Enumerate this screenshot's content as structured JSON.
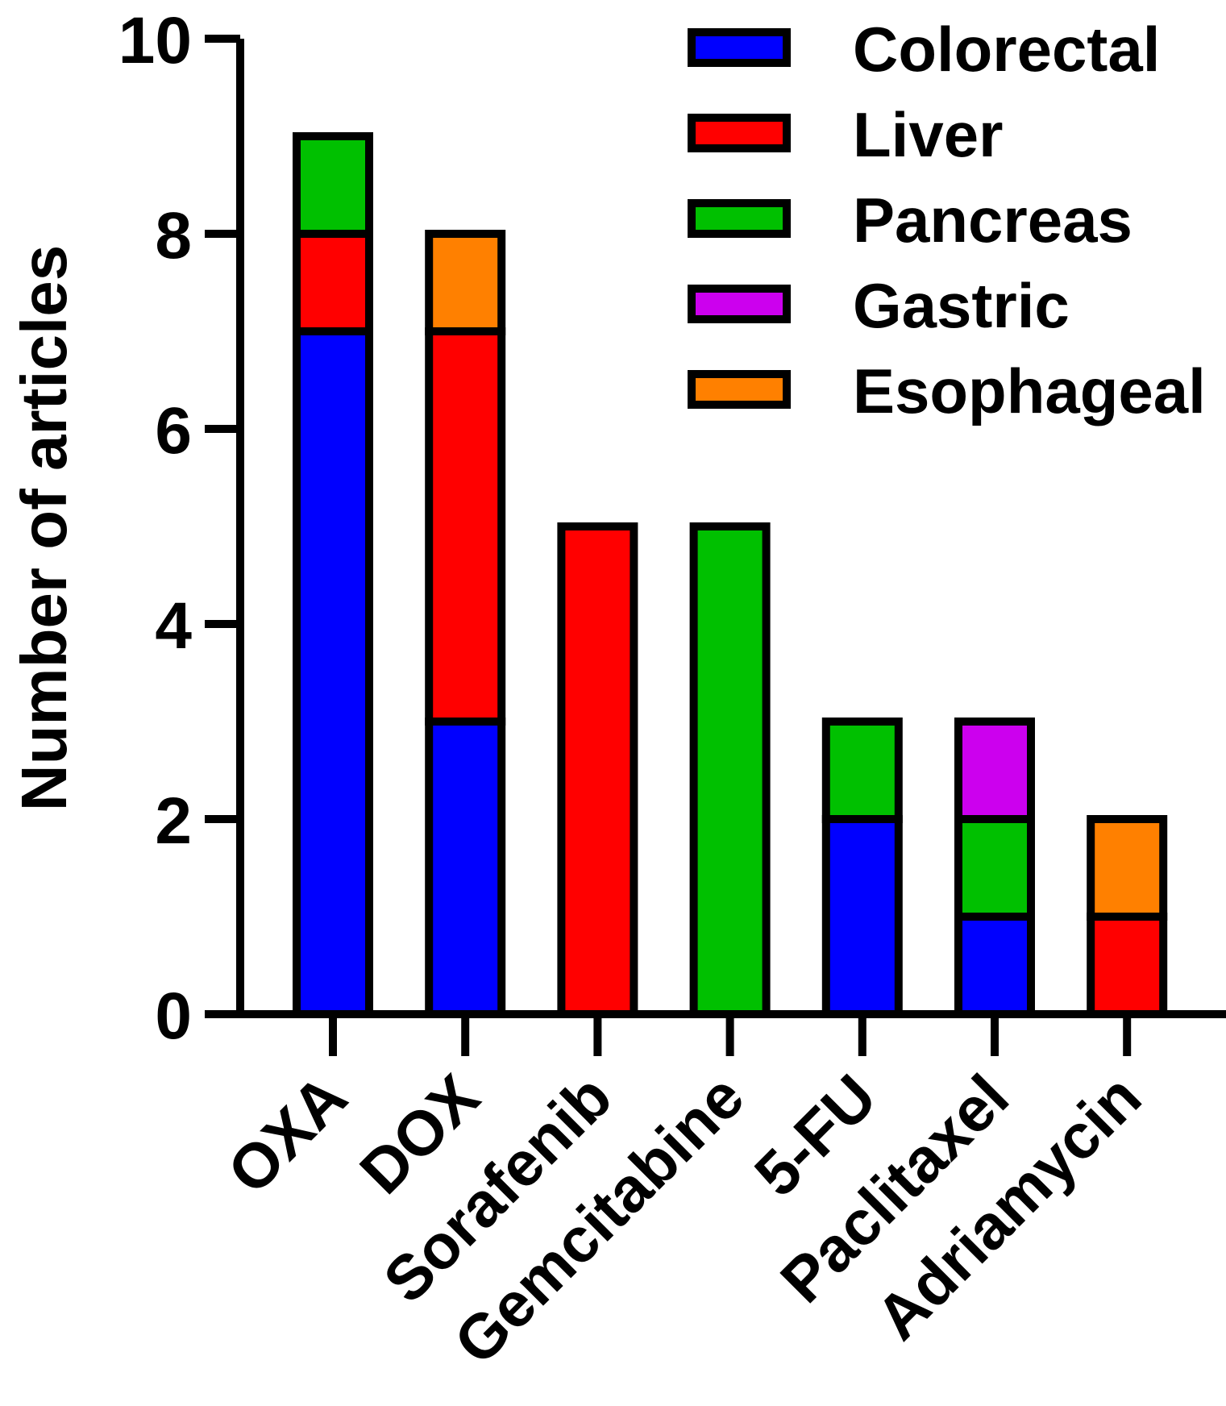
{
  "chart_data": {
    "type": "bar",
    "stacked": true,
    "title": "",
    "xlabel": "",
    "ylabel": "Number of articles",
    "ylim": [
      0,
      10
    ],
    "yticks": [
      0,
      2,
      4,
      6,
      8,
      10
    ],
    "legend_position": "top-right",
    "categories": [
      "OXA",
      "DOX",
      "Sorafenib",
      "Gemcitabine",
      "5-FU",
      "Paclitaxel",
      "Adriamycin"
    ],
    "series": [
      {
        "name": "Colorectal",
        "color": "#0000ff",
        "values": [
          7,
          3,
          0,
          0,
          2,
          1,
          0
        ]
      },
      {
        "name": "Liver",
        "color": "#ff0000",
        "values": [
          1,
          4,
          5,
          0,
          0,
          0,
          1
        ]
      },
      {
        "name": "Pancreas",
        "color": "#00c000",
        "values": [
          1,
          0,
          0,
          5,
          1,
          1,
          0
        ]
      },
      {
        "name": "Gastric",
        "color": "#cc00ee",
        "values": [
          0,
          0,
          0,
          0,
          0,
          1,
          0
        ]
      },
      {
        "name": "Esophageal",
        "color": "#ff8000",
        "values": [
          0,
          1,
          0,
          0,
          0,
          0,
          1
        ]
      }
    ]
  }
}
